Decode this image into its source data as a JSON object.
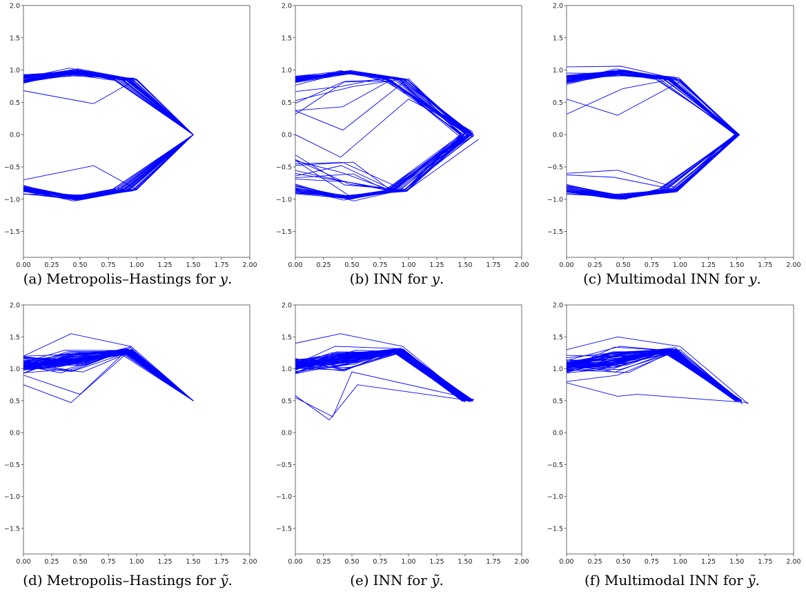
{
  "figure": {
    "captions": [
      {
        "label": "(a)",
        "text": "Metropolis–Hastings for",
        "var": "y",
        "end": "."
      },
      {
        "label": "(b)",
        "text": "INN for",
        "var": "y",
        "end": "."
      },
      {
        "label": "(c)",
        "text": "Multimodal INN for",
        "var": "y",
        "end": "."
      },
      {
        "label": "(d)",
        "text": "Metropolis–Hastings for",
        "var": "ỹ",
        "end": "."
      },
      {
        "label": "(e)",
        "text": "INN for",
        "var": "ỹ",
        "end": "."
      },
      {
        "label": "(f)",
        "text": "Multimodal INN for",
        "var": "ỹ",
        "end": "."
      }
    ]
  },
  "chart_data": [
    {
      "type": "line",
      "mode": "y",
      "seed": 11,
      "end_scatter": 0.0,
      "ray_prob": 0.0,
      "xlim": [
        0,
        2
      ],
      "ylim": [
        -1.9,
        2.0
      ],
      "xticks": [
        0.0,
        0.25,
        0.5,
        0.75,
        1.0,
        1.25,
        1.5,
        1.75,
        2.0
      ],
      "xtick_labels": [
        "0.00",
        "0.25",
        "0.50",
        "0.75",
        "1.00",
        "1.25",
        "1.50",
        "1.75",
        "2.00"
      ],
      "yticks": [
        -1.5,
        -1.0,
        -0.5,
        0.0,
        0.5,
        1.0,
        1.5,
        2.0
      ],
      "ytick_labels": [
        "−1.5",
        "−1.0",
        "−0.5",
        "0.0",
        "0.5",
        "1.0",
        "1.5",
        "2.0"
      ],
      "color": "#0000ff",
      "series": [
        {
          "x": [
            0.0,
            0.48,
            1.0,
            1.5
          ],
          "y": [
            0.85,
            1.02,
            0.85,
            0.0
          ]
        },
        {
          "x": [
            0.0,
            0.62,
            1.0,
            1.5
          ],
          "y": [
            0.68,
            0.48,
            0.86,
            0.0
          ]
        },
        {
          "x": [
            0.0,
            0.48,
            1.0,
            1.5
          ],
          "y": [
            -0.88,
            -1.02,
            -0.85,
            0.0
          ]
        },
        {
          "x": [
            0.0,
            0.62,
            1.0,
            1.5
          ],
          "y": [
            -0.7,
            -0.48,
            -0.85,
            0.0
          ]
        }
      ]
    },
    {
      "type": "line",
      "mode": "y",
      "seed": 23,
      "end_scatter": 0.06,
      "ray_prob": 0.22,
      "xlim": [
        0,
        2
      ],
      "ylim": [
        -1.9,
        2.0
      ],
      "xticks": [
        0.0,
        0.25,
        0.5,
        0.75,
        1.0,
        1.25,
        1.5,
        1.75,
        2.0
      ],
      "xtick_labels": [
        "0.00",
        "0.25",
        "0.50",
        "0.75",
        "1.00",
        "1.25",
        "1.50",
        "1.75",
        "2.00"
      ],
      "yticks": [
        -1.5,
        -1.0,
        -0.5,
        0.0,
        0.5,
        1.0,
        1.5,
        2.0
      ],
      "ytick_labels": [
        "−1.5",
        "−1.0",
        "−0.5",
        "0.0",
        "0.5",
        "1.0",
        "1.5",
        "2.0"
      ],
      "color": "#0000ff",
      "series": [
        {
          "x": [
            0.0,
            0.42,
            1.0,
            1.5
          ],
          "y": [
            0.37,
            0.07,
            0.87,
            0.0
          ]
        },
        {
          "x": [
            0.0,
            0.4,
            1.0,
            1.55
          ],
          "y": [
            0.0,
            -0.35,
            0.55,
            0.05
          ]
        },
        {
          "x": [
            0.0,
            0.48,
            1.0,
            1.62
          ],
          "y": [
            -0.4,
            -0.95,
            -0.85,
            -0.07
          ]
        }
      ]
    },
    {
      "type": "line",
      "mode": "y",
      "seed": 37,
      "end_scatter": 0.02,
      "ray_prob": 0.05,
      "xlim": [
        0,
        2
      ],
      "ylim": [
        -1.9,
        2.0
      ],
      "xticks": [
        0.0,
        0.25,
        0.5,
        0.75,
        1.0,
        1.25,
        1.5,
        1.75,
        2.0
      ],
      "xtick_labels": [
        "0.00",
        "0.25",
        "0.50",
        "0.75",
        "1.00",
        "1.25",
        "1.50",
        "1.75",
        "2.00"
      ],
      "yticks": [
        -1.5,
        -1.0,
        -0.5,
        0.0,
        0.5,
        1.0,
        1.5,
        2.0
      ],
      "ytick_labels": [
        "−1.5",
        "−1.0",
        "−0.5",
        "0.0",
        "0.5",
        "1.0",
        "1.5",
        "2.0"
      ],
      "color": "#0000ff",
      "series": [
        {
          "x": [
            0.0,
            0.48,
            1.0,
            1.52
          ],
          "y": [
            1.05,
            1.06,
            0.85,
            0.0
          ]
        },
        {
          "x": [
            0.0,
            0.45,
            1.0,
            1.52
          ],
          "y": [
            0.55,
            0.3,
            0.82,
            0.0
          ]
        },
        {
          "x": [
            0.0,
            0.45,
            1.0,
            1.52
          ],
          "y": [
            -0.6,
            -0.55,
            -0.84,
            0.0
          ]
        }
      ]
    },
    {
      "type": "line",
      "mode": "ytilde",
      "seed": 41,
      "end_scatter": 0.0,
      "ray_prob": 0.0,
      "xlim": [
        0,
        2
      ],
      "ylim": [
        -1.9,
        2.0
      ],
      "xticks": [
        0.0,
        0.25,
        0.5,
        0.75,
        1.0,
        1.25,
        1.5,
        1.75,
        2.0
      ],
      "xtick_labels": [
        "0.00",
        "0.25",
        "0.50",
        "0.75",
        "1.00",
        "1.25",
        "1.50",
        "1.75",
        "2.00"
      ],
      "yticks": [
        -1.5,
        -1.0,
        -0.5,
        0.0,
        0.5,
        1.0,
        1.5,
        2.0
      ],
      "ytick_labels": [
        "−1.5",
        "−1.0",
        "−0.5",
        "0.0",
        "0.5",
        "1.0",
        "1.5",
        "2.0"
      ],
      "color": "#0000ff",
      "series": [
        {
          "x": [
            0.0,
            0.42,
            0.95,
            1.5
          ],
          "y": [
            1.2,
            1.55,
            1.35,
            0.5
          ]
        },
        {
          "x": [
            0.0,
            0.42,
            0.95,
            1.5
          ],
          "y": [
            0.75,
            0.47,
            1.3,
            0.5
          ]
        },
        {
          "x": [
            0.0,
            0.5,
            0.95,
            1.5
          ],
          "y": [
            0.9,
            0.6,
            1.35,
            0.5
          ]
        }
      ]
    },
    {
      "type": "line",
      "mode": "ytilde",
      "seed": 53,
      "end_scatter": 0.05,
      "ray_prob": 0.18,
      "xlim": [
        0,
        2
      ],
      "ylim": [
        -1.9,
        2.0
      ],
      "xticks": [
        0.0,
        0.25,
        0.5,
        0.75,
        1.0,
        1.25,
        1.5,
        1.75,
        2.0
      ],
      "xtick_labels": [
        "0.00",
        "0.25",
        "0.50",
        "0.75",
        "1.00",
        "1.25",
        "1.50",
        "1.75",
        "2.00"
      ],
      "yticks": [
        -1.5,
        -1.0,
        -0.5,
        0.0,
        0.5,
        1.0,
        1.5,
        2.0
      ],
      "ytick_labels": [
        "−1.5",
        "−1.0",
        "−0.5",
        "0.0",
        "0.5",
        "1.0",
        "1.5",
        "2.0"
      ],
      "color": "#0000ff",
      "series": [
        {
          "x": [
            0.0,
            0.3,
            0.55,
            1.55
          ],
          "y": [
            0.58,
            0.2,
            0.75,
            0.5
          ]
        },
        {
          "x": [
            0.0,
            0.33,
            0.5,
            1.58
          ],
          "y": [
            0.55,
            0.25,
            0.95,
            0.52
          ]
        },
        {
          "x": [
            0.0,
            0.4,
            0.95,
            1.55
          ],
          "y": [
            1.4,
            1.55,
            1.35,
            0.48
          ]
        }
      ]
    },
    {
      "type": "line",
      "mode": "ytilde",
      "seed": 67,
      "end_scatter": 0.03,
      "ray_prob": 0.08,
      "xlim": [
        0,
        2
      ],
      "ylim": [
        -1.9,
        2.0
      ],
      "xticks": [
        0.0,
        0.25,
        0.5,
        0.75,
        1.0,
        1.25,
        1.5,
        1.75,
        2.0
      ],
      "xtick_labels": [
        "0.00",
        "0.25",
        "0.50",
        "0.75",
        "1.00",
        "1.25",
        "1.50",
        "1.75",
        "2.00"
      ],
      "yticks": [
        -1.5,
        -1.0,
        -0.5,
        0.0,
        0.5,
        1.0,
        1.5,
        2.0
      ],
      "ytick_labels": [
        "−1.5",
        "−1.0",
        "−0.5",
        "0.0",
        "0.5",
        "1.0",
        "1.5",
        "2.0"
      ],
      "color": "#0000ff",
      "series": [
        {
          "x": [
            0.0,
            0.45,
            1.0,
            1.6
          ],
          "y": [
            1.3,
            1.5,
            1.35,
            0.45
          ]
        },
        {
          "x": [
            0.0,
            0.45,
            0.62,
            1.6
          ],
          "y": [
            0.78,
            0.57,
            0.6,
            0.47
          ]
        },
        {
          "x": [
            0.0,
            0.45,
            1.0,
            1.55
          ],
          "y": [
            0.8,
            0.9,
            1.3,
            0.45
          ]
        }
      ]
    }
  ]
}
